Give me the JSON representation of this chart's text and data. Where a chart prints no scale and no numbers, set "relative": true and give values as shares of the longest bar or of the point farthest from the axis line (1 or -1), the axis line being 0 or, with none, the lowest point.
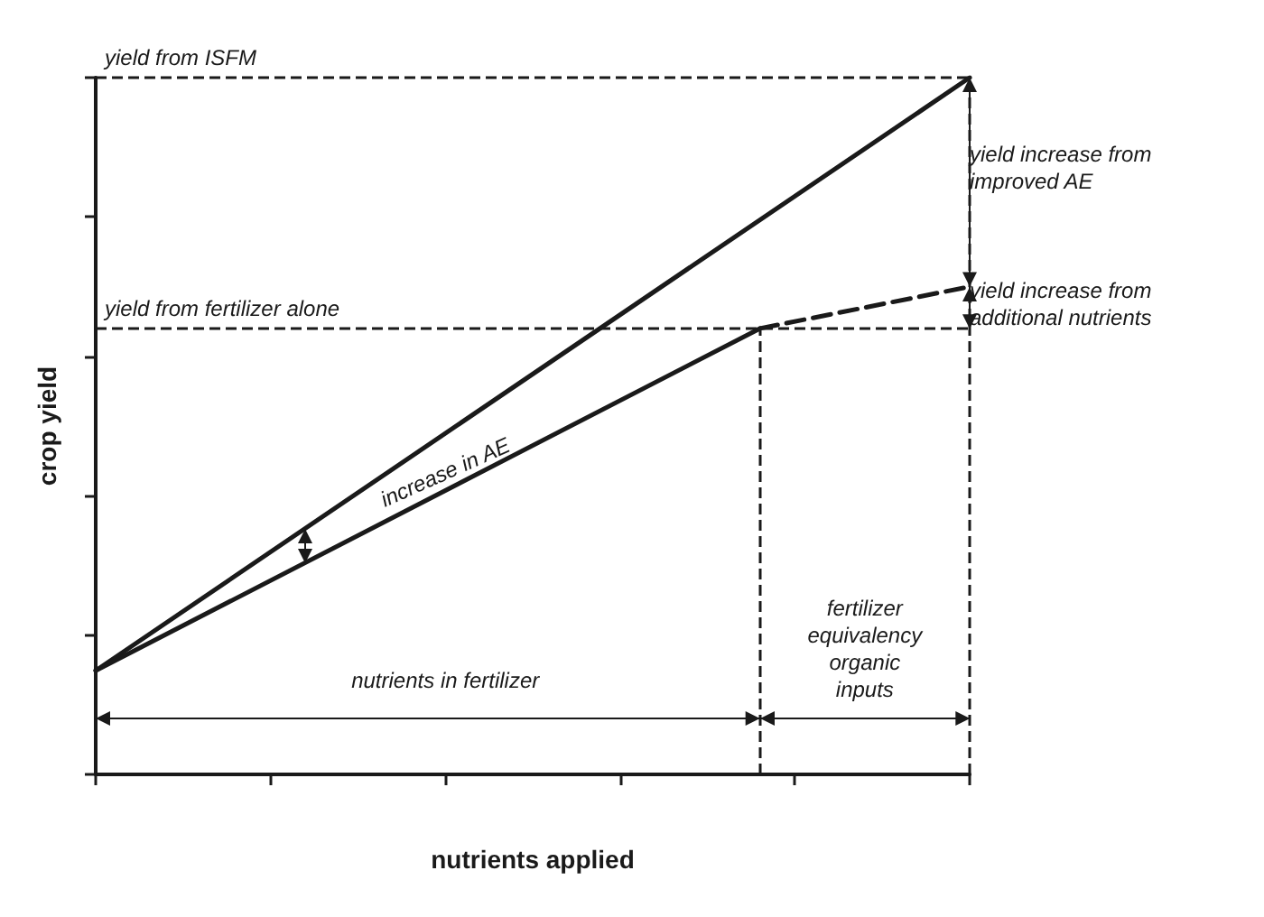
{
  "chart_data": {
    "type": "line",
    "relative": true,
    "xlabel": "nutrients applied",
    "ylabel": "crop yield",
    "categories": [
      null,
      null,
      null,
      null,
      null,
      null,
      null,
      null,
      null,
      null,
      null,
      null,
      null,
      null,
      null,
      null,
      null,
      null,
      null,
      null,
      null,
      null,
      null,
      null,
      null,
      null
    ],
    "series": [
      {
        "values": [
          0.149,
          null,
          null,
          null,
          null,
          null,
          null,
          null,
          null,
          null,
          null,
          null,
          null,
          null,
          null,
          null,
          null,
          null,
          null,
          null,
          null,
          null,
          null,
          null,
          null,
          1
        ],
        "color": "#1a1a1a",
        "line_style": "solid"
      },
      {
        "values": [
          0.149,
          null,
          null,
          null,
          null,
          null,
          null,
          null,
          null,
          null,
          null,
          null,
          null,
          null,
          null,
          null,
          null,
          null,
          null,
          0.64,
          null,
          null,
          null,
          null,
          null,
          null
        ],
        "color": "#1a1a1a",
        "line_style": "solid"
      },
      {
        "values": [
          null,
          null,
          null,
          null,
          null,
          null,
          null,
          null,
          null,
          null,
          null,
          null,
          null,
          null,
          null,
          null,
          null,
          null,
          null,
          0.64,
          null,
          null,
          null,
          null,
          null,
          0.7
        ],
        "color": "#1a1a1a",
        "line_style": "dashed"
      }
    ],
    "ref_lines": [
      {
        "axis": "y",
        "value": 1,
        "label": "yield from ISFM",
        "line_style": "dashed"
      },
      {
        "axis": "y",
        "value": 0.64,
        "label": "yield from fertilizer alone",
        "line_style": "dashed"
      }
    ],
    "annotations": [
      "increase in AE",
      "nutrients in fertilizer",
      "fertilizer\nequivalency\norganic\ninputs",
      "yield increase from\nimproved AE",
      "yield increase from\nadditional nutrients"
    ],
    "grid": false,
    "marker": "none"
  }
}
